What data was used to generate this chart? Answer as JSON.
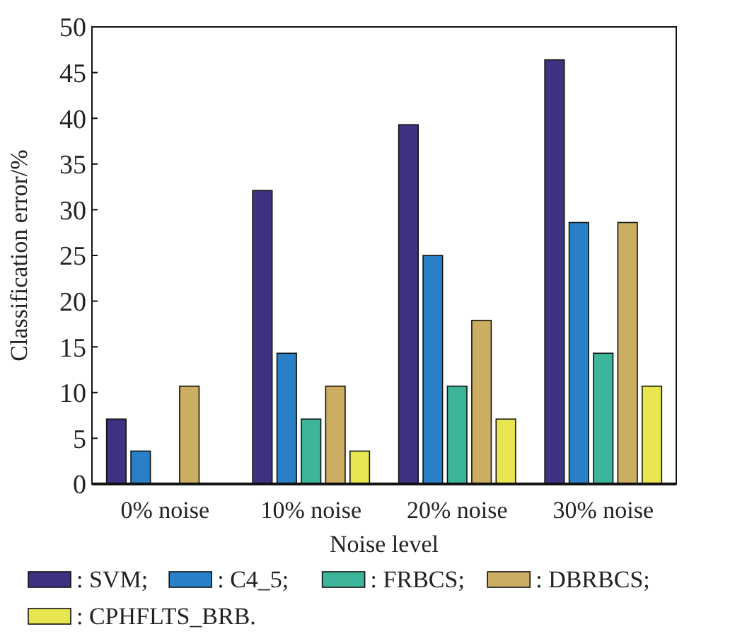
{
  "chart_data": {
    "type": "bar",
    "xlabel": "Noise level",
    "ylabel": "Classification error/%",
    "categories": [
      "0% noise",
      "10% noise",
      "20% noise",
      "30% noise"
    ],
    "series": [
      {
        "name": ": SVM;",
        "color": "#3f3282",
        "values": [
          7.1,
          32.1,
          39.3,
          46.4
        ]
      },
      {
        "name": ": C4_5;",
        "color": "#2a80c6",
        "values": [
          3.6,
          14.3,
          25,
          28.6
        ]
      },
      {
        "name": ": FRBCS;",
        "color": "#3db59b",
        "values": [
          0,
          7.1,
          10.7,
          14.3
        ]
      },
      {
        "name": ": DBRBCS;",
        "color": "#cbae62",
        "values": [
          10.7,
          10.7,
          17.9,
          28.6
        ]
      },
      {
        "name": ": CPHFLTS_BRB.",
        "color": "#e8e650",
        "values": [
          0,
          3.6,
          7.1,
          10.7
        ]
      }
    ],
    "ylim": [
      0,
      50
    ],
    "yticks": [
      0,
      5,
      10,
      15,
      20,
      25,
      30,
      35,
      40,
      45,
      50
    ],
    "legend": "bottom"
  }
}
